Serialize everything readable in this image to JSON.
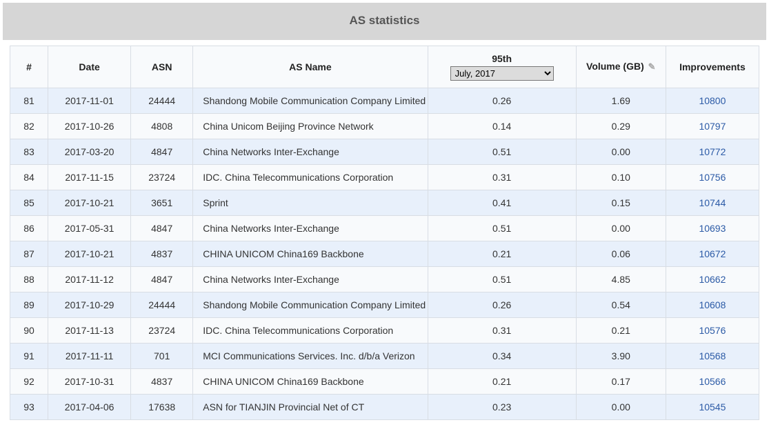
{
  "panel": {
    "title": "AS statistics"
  },
  "table": {
    "header": {
      "num": "#",
      "date": "Date",
      "asn": "ASN",
      "asname": "AS Name",
      "p95_top": "95th",
      "p95_selected": "July, 2017",
      "volume": "Volume (GB)",
      "improvements": "Improvements"
    },
    "rows": [
      {
        "num": "81",
        "date": "2017-11-01",
        "asn": "24444",
        "name": "Shandong Mobile Communication Company Limited",
        "p95": "0.26",
        "vol": "1.69",
        "imp": "10800"
      },
      {
        "num": "82",
        "date": "2017-10-26",
        "asn": "4808",
        "name": "China Unicom Beijing Province Network",
        "p95": "0.14",
        "vol": "0.29",
        "imp": "10797"
      },
      {
        "num": "83",
        "date": "2017-03-20",
        "asn": "4847",
        "name": "China Networks Inter-Exchange",
        "p95": "0.51",
        "vol": "0.00",
        "imp": "10772"
      },
      {
        "num": "84",
        "date": "2017-11-15",
        "asn": "23724",
        "name": "IDC. China Telecommunications Corporation",
        "p95": "0.31",
        "vol": "0.10",
        "imp": "10756"
      },
      {
        "num": "85",
        "date": "2017-10-21",
        "asn": "3651",
        "name": "Sprint",
        "p95": "0.41",
        "vol": "0.15",
        "imp": "10744"
      },
      {
        "num": "86",
        "date": "2017-05-31",
        "asn": "4847",
        "name": "China Networks Inter-Exchange",
        "p95": "0.51",
        "vol": "0.00",
        "imp": "10693"
      },
      {
        "num": "87",
        "date": "2017-10-21",
        "asn": "4837",
        "name": "CHINA UNICOM China169 Backbone",
        "p95": "0.21",
        "vol": "0.06",
        "imp": "10672"
      },
      {
        "num": "88",
        "date": "2017-11-12",
        "asn": "4847",
        "name": "China Networks Inter-Exchange",
        "p95": "0.51",
        "vol": "4.85",
        "imp": "10662"
      },
      {
        "num": "89",
        "date": "2017-10-29",
        "asn": "24444",
        "name": "Shandong Mobile Communication Company Limited",
        "p95": "0.26",
        "vol": "0.54",
        "imp": "10608"
      },
      {
        "num": "90",
        "date": "2017-11-13",
        "asn": "23724",
        "name": "IDC. China Telecommunications Corporation",
        "p95": "0.31",
        "vol": "0.21",
        "imp": "10576"
      },
      {
        "num": "91",
        "date": "2017-11-11",
        "asn": "701",
        "name": "MCI Communications Services. Inc. d/b/a Verizon",
        "p95": "0.34",
        "vol": "3.90",
        "imp": "10568"
      },
      {
        "num": "92",
        "date": "2017-10-31",
        "asn": "4837",
        "name": "CHINA UNICOM China169 Backbone",
        "p95": "0.21",
        "vol": "0.17",
        "imp": "10566"
      },
      {
        "num": "93",
        "date": "2017-04-06",
        "asn": "17638",
        "name": "ASN for TIANJIN Provincial Net of CT",
        "p95": "0.23",
        "vol": "0.00",
        "imp": "10545"
      }
    ]
  }
}
